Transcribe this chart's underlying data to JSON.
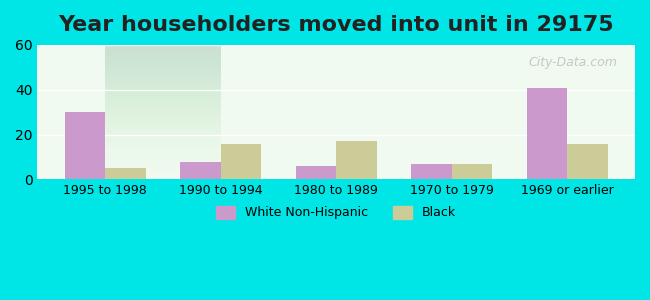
{
  "title": "Year householders moved into unit in 29175",
  "categories": [
    "1995 to 1998",
    "1990 to 1994",
    "1980 to 1989",
    "1970 to 1979",
    "1969 or earlier"
  ],
  "white_values": [
    30,
    8,
    6,
    7,
    41
  ],
  "black_values": [
    5,
    16,
    17,
    7,
    16
  ],
  "white_color": "#cc99cc",
  "black_color": "#cccc99",
  "ylim": [
    0,
    60
  ],
  "yticks": [
    0,
    20,
    40,
    60
  ],
  "background_color": "#00e5e5",
  "plot_bg_top": "#e8f5e9",
  "plot_bg_bottom": "#f5fff5",
  "bar_width": 0.35,
  "title_fontsize": 16,
  "watermark": "City-Data.com"
}
